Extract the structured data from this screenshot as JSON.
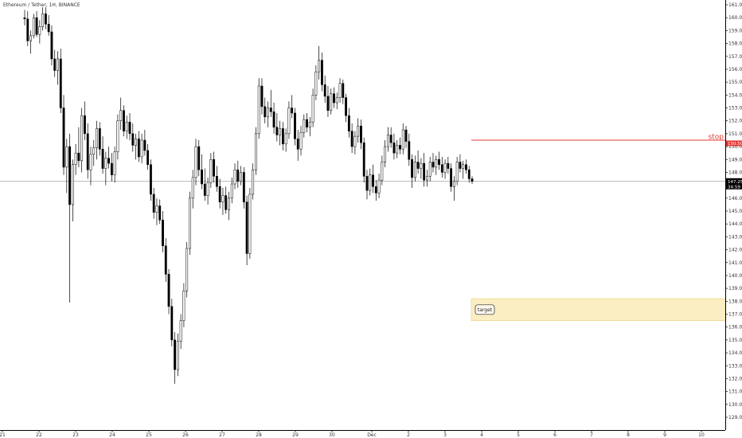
{
  "symbol_label": "Ethereum / Tether, 1H, BINANCE",
  "colors": {
    "up": "#ffffff",
    "down": "#000000",
    "wick": "#000000",
    "stop": "#e53935",
    "target_fill": "#fbeec3",
    "target_border": "#e8cf7a",
    "axis": "#000000",
    "crosshair": "#9e9e9e",
    "price_badge": "#000000"
  },
  "chart_data": {
    "type": "candlestick",
    "y_axis": {
      "min": 128,
      "max": 161,
      "ticks": [
        "161.00",
        "160.00",
        "159.00",
        "158.00",
        "157.00",
        "156.00",
        "155.00",
        "154.00",
        "153.00",
        "152.00",
        "151.00",
        "150.00",
        "149.00",
        "148.00",
        "147.00",
        "146.00",
        "145.00",
        "144.00",
        "143.00",
        "142.00",
        "141.00",
        "140.00",
        "139.00",
        "138.00",
        "137.00",
        "136.00",
        "135.00",
        "134.00",
        "133.00",
        "132.00",
        "131.00",
        "130.00",
        "129.00"
      ]
    },
    "x_axis": {
      "labels": [
        "21",
        "22",
        "23",
        "24",
        "25",
        "26",
        "27",
        "28",
        "29",
        "30",
        "Dec",
        "2",
        "3",
        "4",
        "5",
        "6",
        "7",
        "8",
        "9",
        "10"
      ],
      "start_label": "21",
      "end_label": "10"
    },
    "candles_ohlc": [
      [
        160.0,
        160.6,
        159.4,
        159.9
      ],
      [
        159.9,
        160.5,
        157.8,
        158.2
      ],
      [
        158.2,
        159.0,
        157.2,
        158.6
      ],
      [
        158.6,
        160.3,
        158.4,
        160.0
      ],
      [
        160.0,
        160.5,
        158.5,
        158.7
      ],
      [
        158.7,
        159.8,
        158.0,
        159.3
      ],
      [
        159.3,
        160.8,
        159.0,
        160.3
      ],
      [
        160.3,
        160.8,
        159.1,
        159.5
      ],
      [
        159.5,
        160.2,
        158.6,
        158.9
      ],
      [
        158.9,
        159.4,
        156.3,
        156.8
      ],
      [
        156.8,
        157.5,
        155.4,
        155.9
      ],
      [
        155.9,
        157.4,
        154.8,
        156.8
      ],
      [
        156.8,
        157.6,
        152.6,
        153.0
      ],
      [
        153.0,
        154.0,
        147.8,
        148.4
      ],
      [
        148.4,
        150.6,
        146.4,
        150.0
      ],
      [
        150.0,
        151.0,
        137.9,
        145.5
      ],
      [
        145.5,
        149.0,
        144.2,
        148.6
      ],
      [
        148.6,
        150.2,
        147.8,
        149.5
      ],
      [
        149.5,
        151.5,
        148.4,
        148.9
      ],
      [
        148.9,
        153.0,
        148.0,
        152.4
      ],
      [
        152.4,
        153.5,
        150.5,
        151.0
      ],
      [
        151.0,
        151.8,
        147.5,
        148.2
      ],
      [
        148.2,
        150.0,
        147.0,
        149.4
      ],
      [
        149.4,
        150.5,
        148.5,
        149.9
      ],
      [
        149.9,
        152.0,
        149.0,
        151.4
      ],
      [
        151.4,
        151.9,
        149.3,
        149.8
      ],
      [
        149.8,
        150.8,
        147.9,
        148.3
      ],
      [
        148.3,
        149.6,
        147.0,
        149.1
      ],
      [
        149.1,
        150.0,
        148.3,
        148.7
      ],
      [
        148.7,
        149.5,
        147.3,
        147.8
      ],
      [
        147.8,
        150.0,
        147.2,
        149.6
      ],
      [
        149.6,
        152.5,
        149.0,
        152.0
      ],
      [
        152.0,
        153.8,
        151.3,
        152.8
      ],
      [
        152.8,
        153.2,
        150.8,
        151.2
      ],
      [
        151.2,
        152.4,
        150.6,
        151.9
      ],
      [
        151.9,
        152.6,
        150.5,
        151.0
      ],
      [
        151.0,
        151.8,
        149.6,
        150.1
      ],
      [
        150.1,
        151.0,
        149.0,
        150.6
      ],
      [
        150.6,
        151.2,
        148.8,
        149.2
      ],
      [
        149.2,
        151.0,
        148.7,
        150.5
      ],
      [
        150.5,
        151.3,
        149.3,
        149.7
      ],
      [
        149.7,
        150.2,
        148.2,
        148.6
      ],
      [
        148.6,
        149.0,
        145.8,
        146.3
      ],
      [
        146.3,
        146.8,
        144.4,
        144.9
      ],
      [
        144.9,
        146.0,
        143.9,
        145.4
      ],
      [
        145.4,
        145.9,
        144.0,
        144.3
      ],
      [
        144.3,
        145.0,
        141.8,
        142.3
      ],
      [
        142.3,
        142.9,
        139.5,
        140.1
      ],
      [
        140.1,
        140.5,
        137.0,
        137.6
      ],
      [
        137.6,
        138.2,
        134.5,
        135.0
      ],
      [
        135.0,
        135.6,
        131.6,
        132.7
      ],
      [
        132.7,
        135.5,
        132.2,
        134.9
      ],
      [
        134.9,
        137.0,
        134.3,
        136.5
      ],
      [
        136.5,
        139.4,
        136.0,
        138.8
      ],
      [
        138.8,
        142.6,
        138.3,
        142.1
      ],
      [
        142.1,
        146.5,
        141.6,
        146.0
      ],
      [
        146.0,
        148.2,
        145.2,
        147.6
      ],
      [
        147.6,
        150.6,
        147.0,
        150.0
      ],
      [
        150.0,
        150.5,
        147.7,
        148.2
      ],
      [
        148.2,
        149.4,
        146.7,
        147.1
      ],
      [
        147.1,
        148.3,
        145.8,
        146.2
      ],
      [
        146.2,
        147.6,
        145.5,
        147.2
      ],
      [
        147.2,
        149.5,
        146.8,
        149.0
      ],
      [
        149.0,
        149.6,
        147.2,
        147.7
      ],
      [
        147.7,
        148.5,
        146.5,
        146.9
      ],
      [
        146.9,
        147.5,
        145.2,
        145.7
      ],
      [
        145.7,
        146.8,
        144.7,
        146.2
      ],
      [
        146.2,
        146.9,
        144.8,
        145.1
      ],
      [
        145.1,
        146.5,
        144.3,
        146.0
      ],
      [
        146.0,
        147.6,
        145.6,
        147.1
      ],
      [
        147.1,
        148.7,
        146.7,
        148.2
      ],
      [
        148.2,
        148.9,
        146.8,
        147.3
      ],
      [
        147.3,
        148.5,
        147.0,
        148.0
      ],
      [
        148.0,
        148.4,
        145.2,
        145.7
      ],
      [
        145.7,
        146.2,
        140.8,
        141.7
      ],
      [
        141.7,
        146.8,
        141.3,
        146.3
      ],
      [
        146.3,
        148.7,
        145.9,
        148.2
      ],
      [
        148.2,
        151.5,
        147.8,
        151.0
      ],
      [
        151.0,
        155.3,
        150.6,
        154.7
      ],
      [
        154.7,
        155.3,
        152.5,
        153.1
      ],
      [
        153.1,
        153.8,
        151.8,
        152.3
      ],
      [
        152.3,
        153.5,
        151.5,
        153.0
      ],
      [
        153.0,
        154.4,
        152.3,
        152.7
      ],
      [
        152.7,
        153.4,
        151.0,
        151.5
      ],
      [
        151.5,
        152.6,
        150.4,
        150.9
      ],
      [
        150.9,
        152.0,
        150.1,
        151.4
      ],
      [
        151.4,
        151.9,
        149.7,
        150.2
      ],
      [
        150.2,
        151.4,
        149.6,
        151.0
      ],
      [
        151.0,
        153.5,
        150.6,
        153.0
      ],
      [
        153.0,
        154.0,
        152.2,
        152.6
      ],
      [
        152.6,
        153.0,
        150.1,
        150.6
      ],
      [
        150.6,
        151.3,
        148.9,
        149.8
      ],
      [
        149.8,
        151.6,
        149.3,
        151.1
      ],
      [
        151.1,
        152.5,
        150.7,
        152.1
      ],
      [
        152.1,
        152.6,
        151.1,
        151.5
      ],
      [
        151.5,
        152.3,
        150.8,
        151.9
      ],
      [
        151.9,
        154.5,
        151.5,
        154.0
      ],
      [
        154.0,
        156.3,
        153.6,
        155.8
      ],
      [
        155.8,
        157.8,
        155.2,
        156.7
      ],
      [
        156.7,
        157.3,
        154.3,
        154.8
      ],
      [
        154.8,
        155.5,
        153.4,
        153.9
      ],
      [
        153.9,
        154.7,
        152.3,
        152.8
      ],
      [
        152.8,
        154.5,
        152.5,
        154.1
      ],
      [
        154.1,
        154.6,
        153.0,
        153.4
      ],
      [
        153.4,
        154.2,
        152.9,
        153.8
      ],
      [
        153.8,
        155.3,
        153.4,
        154.9
      ],
      [
        154.9,
        155.2,
        153.3,
        153.8
      ],
      [
        153.8,
        154.1,
        151.9,
        152.4
      ],
      [
        152.4,
        153.0,
        150.7,
        151.2
      ],
      [
        151.2,
        151.8,
        149.5,
        150.0
      ],
      [
        150.0,
        151.2,
        149.4,
        150.8
      ],
      [
        150.8,
        152.2,
        150.3,
        151.6
      ],
      [
        151.6,
        152.1,
        149.8,
        150.3
      ],
      [
        150.3,
        150.7,
        147.2,
        147.7
      ],
      [
        147.7,
        148.2,
        145.9,
        146.6
      ],
      [
        146.6,
        148.3,
        146.2,
        147.8
      ],
      [
        147.8,
        148.6,
        146.4,
        146.9
      ],
      [
        146.9,
        147.4,
        145.8,
        146.4
      ],
      [
        146.4,
        147.9,
        146.0,
        147.4
      ],
      [
        147.4,
        149.3,
        147.0,
        148.8
      ],
      [
        148.8,
        150.5,
        148.4,
        150.0
      ],
      [
        150.0,
        151.5,
        149.6,
        150.9
      ],
      [
        150.9,
        151.5,
        149.9,
        150.3
      ],
      [
        150.3,
        151.0,
        149.0,
        149.5
      ],
      [
        149.5,
        150.5,
        149.1,
        150.1
      ],
      [
        150.1,
        150.7,
        149.4,
        149.8
      ],
      [
        149.8,
        151.8,
        149.4,
        151.3
      ],
      [
        151.3,
        151.6,
        149.9,
        150.4
      ],
      [
        150.4,
        151.0,
        148.5,
        149.0
      ],
      [
        149.0,
        149.4,
        146.8,
        147.6
      ],
      [
        147.6,
        149.3,
        147.3,
        148.8
      ],
      [
        148.8,
        149.7,
        147.9,
        148.3
      ],
      [
        148.3,
        149.1,
        147.5,
        148.7
      ],
      [
        148.7,
        149.5,
        146.9,
        147.4
      ],
      [
        147.4,
        148.2,
        146.9,
        147.7
      ],
      [
        147.7,
        149.2,
        147.3,
        148.8
      ],
      [
        148.8,
        149.5,
        148.0,
        148.4
      ],
      [
        148.4,
        149.3,
        147.8,
        149.0
      ],
      [
        149.0,
        149.6,
        148.2,
        148.6
      ],
      [
        148.6,
        149.2,
        147.6,
        148.0
      ],
      [
        148.0,
        149.0,
        147.5,
        148.7
      ],
      [
        148.7,
        149.2,
        147.9,
        148.3
      ],
      [
        148.3,
        148.7,
        146.5,
        146.9
      ],
      [
        146.9,
        147.7,
        145.8,
        147.3
      ],
      [
        147.3,
        149.2,
        147.0,
        148.8
      ],
      [
        148.8,
        149.4,
        148.0,
        148.3
      ],
      [
        148.3,
        148.9,
        147.5,
        148.6
      ],
      [
        148.6,
        149.0,
        147.9,
        148.2
      ],
      [
        148.2,
        148.5,
        147.2,
        147.5
      ],
      [
        147.5,
        147.7,
        147.1,
        147.3
      ]
    ],
    "last_price": 147.25,
    "last_price_label": "147.25",
    "last_price_sub": "34:59",
    "stop_level": 150.5,
    "stop_label": "stop",
    "stop_price_label": "150.50",
    "target_zone": {
      "low": 136.5,
      "high": 138.2
    },
    "target_label": "target",
    "horizontal_line": 147.3
  }
}
